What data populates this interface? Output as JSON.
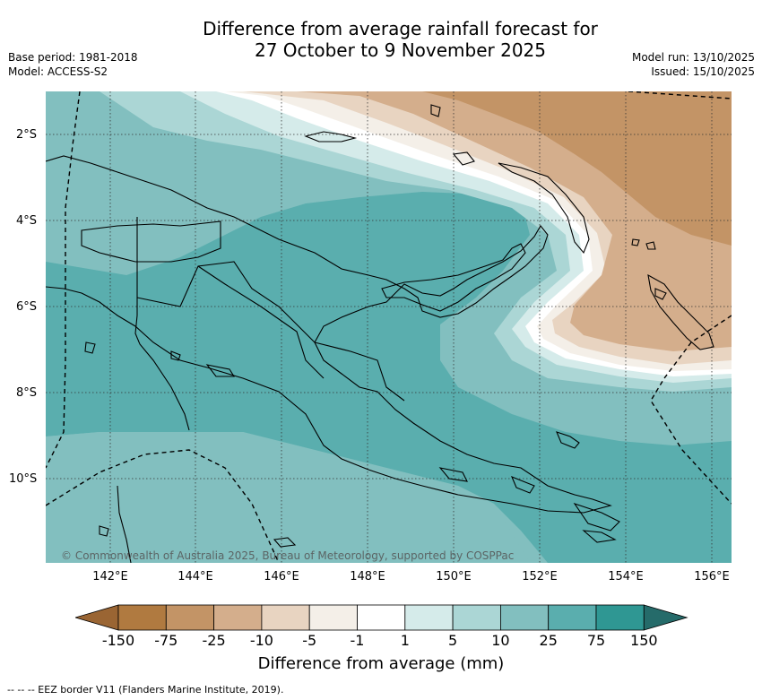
{
  "header": {
    "title_line1": "Difference from average rainfall forecast for",
    "title_line2": "27 October to 9 November 2025",
    "base_period": "Base period: 1981-2018",
    "model": "Model: ACCESS-S2",
    "model_run": "Model run: 13/10/2025",
    "issued": "Issued: 15/10/2025"
  },
  "map": {
    "copyright": "© Commonwealth of Australia 2025, Bureau of Meteorology, supported by COSPPac",
    "lat_labels": [
      "2°S",
      "4°S",
      "6°S",
      "8°S",
      "10°S"
    ],
    "lon_labels": [
      "142°E",
      "144°E",
      "146°E",
      "148°E",
      "150°E",
      "152°E",
      "154°E",
      "156°E"
    ]
  },
  "legend": {
    "title": "Difference from average (mm)",
    "ticks": [
      "-150",
      "-75",
      "-25",
      "-10",
      "-5",
      "-1",
      "1",
      "5",
      "10",
      "25",
      "75",
      "150"
    ],
    "colors": [
      "#9a6533",
      "#b07a40",
      "#c39466",
      "#d4ae8c",
      "#e8d4c1",
      "#f4efe8",
      "#ffffff",
      "#d5ebea",
      "#abd6d5",
      "#82bfbf",
      "#5aaeae",
      "#2f9793",
      "#256b6a"
    ]
  },
  "footnote": "--  --  -- EEZ border V11 (Flanders Marine Institute, 2019)."
}
